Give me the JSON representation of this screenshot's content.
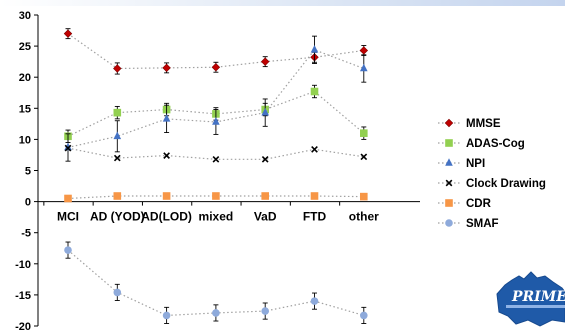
{
  "chart_data": {
    "type": "line",
    "title": "",
    "xlabel": "",
    "ylabel": "",
    "ylim": [
      -20,
      30
    ],
    "yticks": [
      30,
      25,
      20,
      15,
      10,
      5,
      0,
      -5,
      -10,
      -15,
      -20
    ],
    "categories": [
      "MCI",
      "AD (YOD)",
      "AD(LOD)",
      "mixed",
      "VaD",
      "FTD",
      "other"
    ],
    "legend_position": "right",
    "grid": false,
    "series": [
      {
        "name": "MMSE",
        "color": "#c00000",
        "marker": "diamond",
        "values": [
          27.0,
          21.4,
          21.5,
          21.6,
          22.5,
          23.2,
          24.3
        ],
        "error": [
          0.8,
          0.9,
          0.8,
          0.8,
          0.8,
          0.8,
          0.8
        ]
      },
      {
        "name": "ADAS-Cog",
        "color": "#92d050",
        "marker": "square",
        "values": [
          10.5,
          14.3,
          14.8,
          14.1,
          14.8,
          17.7,
          11.0
        ],
        "error": [
          1.0,
          1.0,
          1.0,
          1.0,
          1.0,
          1.0,
          1.0
        ]
      },
      {
        "name": "NPI",
        "color": "#4472c4",
        "marker": "triangle",
        "values": [
          8.7,
          10.5,
          13.3,
          12.8,
          14.3,
          24.4,
          21.4
        ],
        "error": [
          2.2,
          2.5,
          2.2,
          2.0,
          2.2,
          2.2,
          2.2
        ]
      },
      {
        "name": "Clock Drawing",
        "color": "#000000",
        "marker": "x",
        "values": [
          8.6,
          7.0,
          7.4,
          6.8,
          6.8,
          8.4,
          7.2
        ],
        "error": [
          0,
          0,
          0,
          0,
          0,
          0,
          0
        ]
      },
      {
        "name": "CDR",
        "color": "#f79646",
        "marker": "square",
        "values": [
          0.5,
          0.9,
          0.9,
          0.9,
          0.9,
          0.9,
          0.8
        ],
        "error": [
          0,
          0,
          0,
          0,
          0,
          0,
          0
        ]
      },
      {
        "name": "SMAF",
        "color": "#8eaadb",
        "marker": "circle",
        "values": [
          -7.8,
          -14.6,
          -18.3,
          -17.9,
          -17.6,
          -16.0,
          -18.3
        ],
        "error": [
          1.3,
          1.3,
          1.3,
          1.3,
          1.3,
          1.3,
          1.3
        ]
      }
    ]
  },
  "logo": {
    "text": "PRIME",
    "color": "#1f5aa8"
  }
}
